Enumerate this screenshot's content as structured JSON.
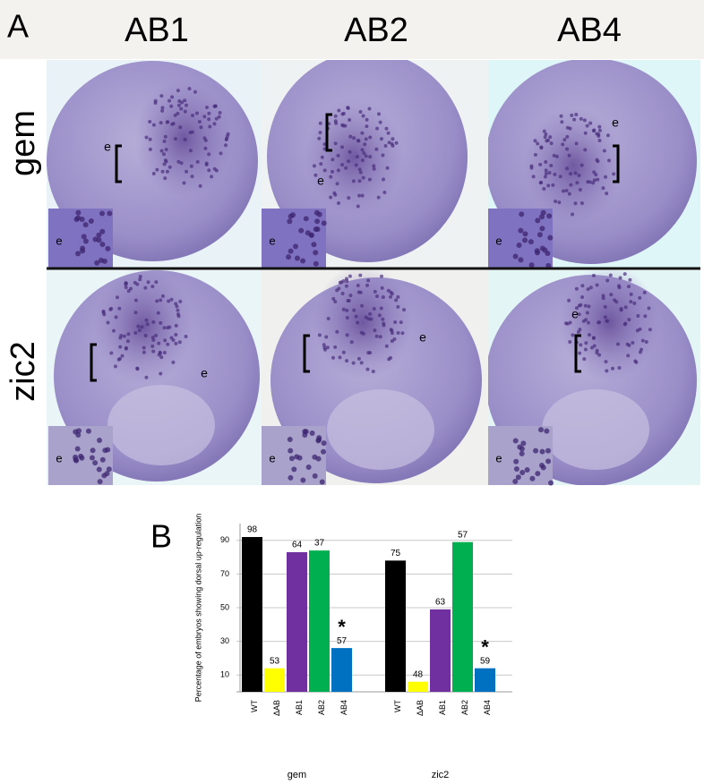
{
  "panel_a": {
    "label": "A",
    "columns": [
      "AB1",
      "AB2",
      "AB4"
    ],
    "rows": [
      "gem",
      "zic2"
    ],
    "marker": "e"
  },
  "panel_b": {
    "label": "B"
  },
  "chart_data": {
    "type": "grouped_bar",
    "y_label": "Percentage of embryos showing dorsal up-regulation",
    "categories": [
      "WT",
      "ΔAB",
      "AB1",
      "AB2",
      "AB4"
    ],
    "colors": [
      "#000000",
      "#ffff00",
      "#7030a0",
      "#00b050",
      "#0070c0"
    ],
    "groups": [
      {
        "name": "gem",
        "values": [
          92,
          14,
          83,
          84,
          26
        ],
        "counts": [
          98,
          53,
          64,
          37,
          57
        ]
      },
      {
        "name": "zic2",
        "values": [
          78,
          6,
          49,
          89,
          14
        ],
        "counts": [
          75,
          48,
          63,
          57,
          59
        ]
      }
    ],
    "significance_mark": "*",
    "significant_category": 4,
    "ylim": [
      0,
      100
    ],
    "yticks": [
      10,
      30,
      50,
      70,
      90
    ],
    "grid": true
  }
}
